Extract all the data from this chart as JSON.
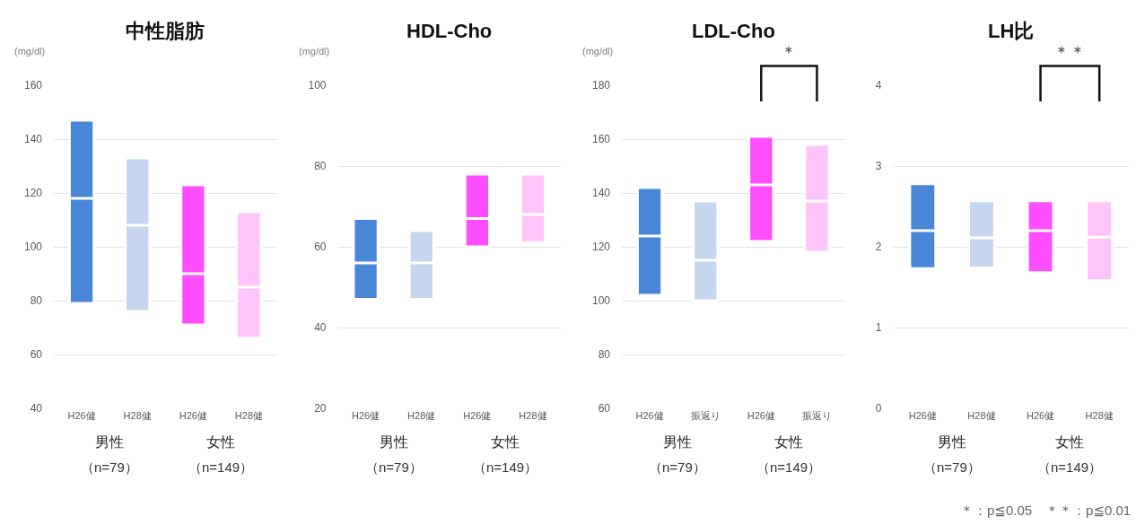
{
  "chart_data": [
    {
      "type": "box",
      "title": "中性脂肪",
      "ylabel": "(mg/dl)",
      "categories": [
        "H26健",
        "H28健",
        "H26健",
        "H28健"
      ],
      "boxes": [
        {
          "low": 79,
          "q1": 79,
          "median": 118,
          "q3": 147,
          "high": 147
        },
        {
          "low": 76,
          "q1": 76,
          "median": 108,
          "q3": 133,
          "high": 133
        },
        {
          "low": 71,
          "q1": 71,
          "median": 90,
          "q3": 123,
          "high": 123
        },
        {
          "low": 66,
          "q1": 66,
          "median": 85,
          "q3": 113,
          "high": 113
        }
      ],
      "colors": [
        "#4a86d8",
        "#c5d6ee",
        "#ff4dff",
        "#ffc5fa"
      ],
      "ylim": [
        40,
        160
      ],
      "yticks": [
        40,
        60,
        80,
        100,
        120,
        140,
        160
      ],
      "grid": "y",
      "annotations": [
        "男性",
        "（n=79）",
        "女性",
        "（n=149）"
      ]
    },
    {
      "type": "box",
      "title": "HDL-Cho",
      "ylabel": "(mg/dl)",
      "categories": [
        "H26健",
        "H28健",
        "H26健",
        "H28健"
      ],
      "boxes": [
        {
          "low": 47,
          "q1": 47,
          "median": 56,
          "q3": 67,
          "high": 67
        },
        {
          "low": 47,
          "q1": 47,
          "median": 56,
          "q3": 64,
          "high": 64
        },
        {
          "low": 60,
          "q1": 60,
          "median": 67,
          "q3": 78,
          "high": 78
        },
        {
          "low": 61,
          "q1": 61,
          "median": 68,
          "q3": 78,
          "high": 78
        }
      ],
      "colors": [
        "#4a86d8",
        "#c5d6ee",
        "#ff4dff",
        "#ffc5fa"
      ],
      "ylim": [
        20,
        100
      ],
      "yticks": [
        20,
        40,
        60,
        80,
        100
      ],
      "grid": "y",
      "annotations": [
        "男性",
        "（n=79）",
        "女性",
        "（n=149）"
      ]
    },
    {
      "type": "box",
      "title": "LDL-Cho",
      "ylabel": "(mg/dl)",
      "categories": [
        "H26健",
        "振返り",
        "H26健",
        "振返り"
      ],
      "boxes": [
        {
          "low": 102,
          "q1": 102,
          "median": 124,
          "q3": 142,
          "high": 142
        },
        {
          "low": 100,
          "q1": 100,
          "median": 115,
          "q3": 137,
          "high": 137
        },
        {
          "low": 122,
          "q1": 122,
          "median": 143,
          "q3": 161,
          "high": 161
        },
        {
          "low": 118,
          "q1": 118,
          "median": 137,
          "q3": 158,
          "high": 158
        }
      ],
      "colors": [
        "#4a86d8",
        "#c5d6ee",
        "#ff4dff",
        "#ffc5fa"
      ],
      "ylim": [
        60,
        180
      ],
      "yticks": [
        60,
        80,
        100,
        120,
        140,
        160,
        180
      ],
      "grid": "y",
      "annotations": [
        "男性",
        "（n=79）",
        "女性",
        "（n=149）",
        "＊"
      ]
    },
    {
      "type": "box",
      "title": "LH比",
      "categories": [
        "H26健",
        "H28健",
        "H26健",
        "H28健"
      ],
      "boxes": [
        {
          "low": 1.73,
          "q1": 1.73,
          "median": 2.2,
          "q3": 2.78,
          "high": 2.78
        },
        {
          "low": 1.74,
          "q1": 1.74,
          "median": 2.11,
          "q3": 2.57,
          "high": 2.57
        },
        {
          "low": 1.68,
          "q1": 1.68,
          "median": 2.2,
          "q3": 2.57,
          "high": 2.57
        },
        {
          "low": 1.58,
          "q1": 1.58,
          "median": 2.12,
          "q3": 2.57,
          "high": 2.57
        }
      ],
      "colors": [
        "#4a86d8",
        "#c5d6ee",
        "#ff4dff",
        "#ffc5fa"
      ],
      "ylim": [
        0,
        4
      ],
      "yticks": [
        0,
        1,
        2,
        3,
        4
      ],
      "grid": "y",
      "annotations": [
        "男性",
        "（n=79）",
        "女性",
        "（n=149）",
        "＊＊",
        "＊：p≦0.05　＊＊：p≦0.01"
      ]
    }
  ]
}
